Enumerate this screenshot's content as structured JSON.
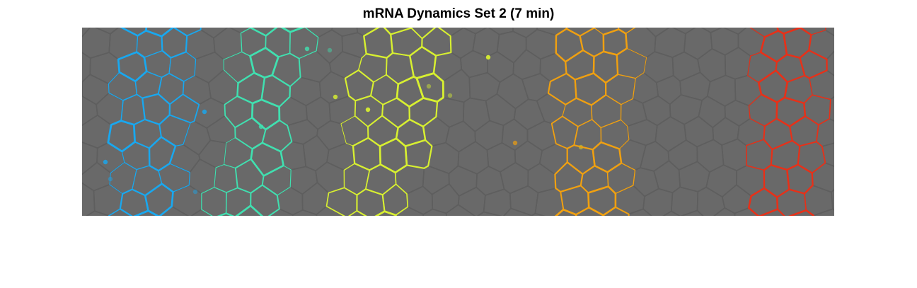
{
  "figure": {
    "title": "mRNA Dynamics Set 2 (7 min)"
  },
  "image": {
    "background_color": "#696969",
    "cell_outline_color": "#5e5e5e",
    "stripes": [
      {
        "name": "blue-stripe",
        "color": "#18a8f0"
      },
      {
        "name": "teal-stripe",
        "color": "#40e0b0"
      },
      {
        "name": "yellow-stripe",
        "color": "#d8f030"
      },
      {
        "name": "orange-stripe",
        "color": "#f0a010"
      },
      {
        "name": "red-stripe",
        "color": "#e83018"
      }
    ]
  }
}
